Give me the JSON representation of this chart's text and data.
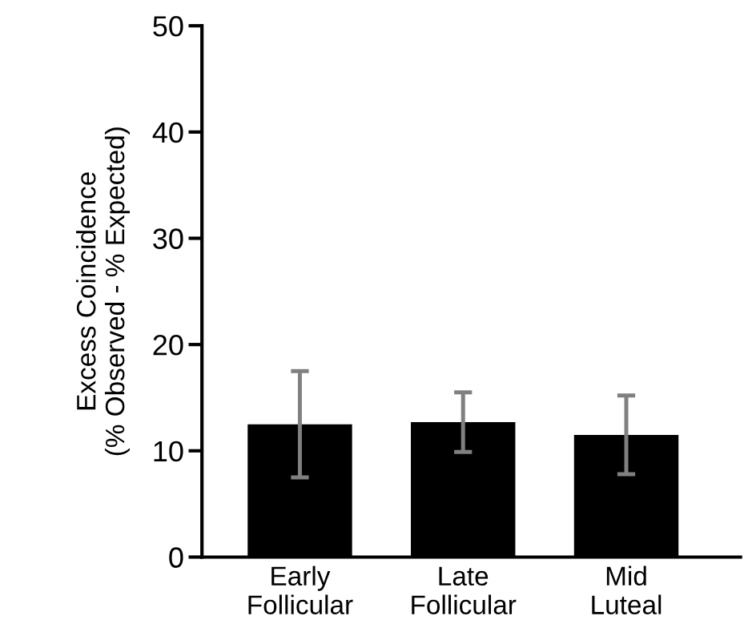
{
  "chart_data": {
    "type": "bar",
    "ylabel": "Excess Coincidence\n(% Observed - % Expected)",
    "categories": [
      "Early\nFollicular",
      "Late\nFollicular",
      "Mid\nLuteal"
    ],
    "values": [
      12.5,
      12.7,
      11.5
    ],
    "errors": [
      5.0,
      2.8,
      3.7
    ],
    "color": "#000000",
    "ylim": [
      0,
      50
    ],
    "yticks": [
      0,
      10,
      20,
      30,
      40,
      50
    ],
    "grid": false,
    "legend": false
  }
}
